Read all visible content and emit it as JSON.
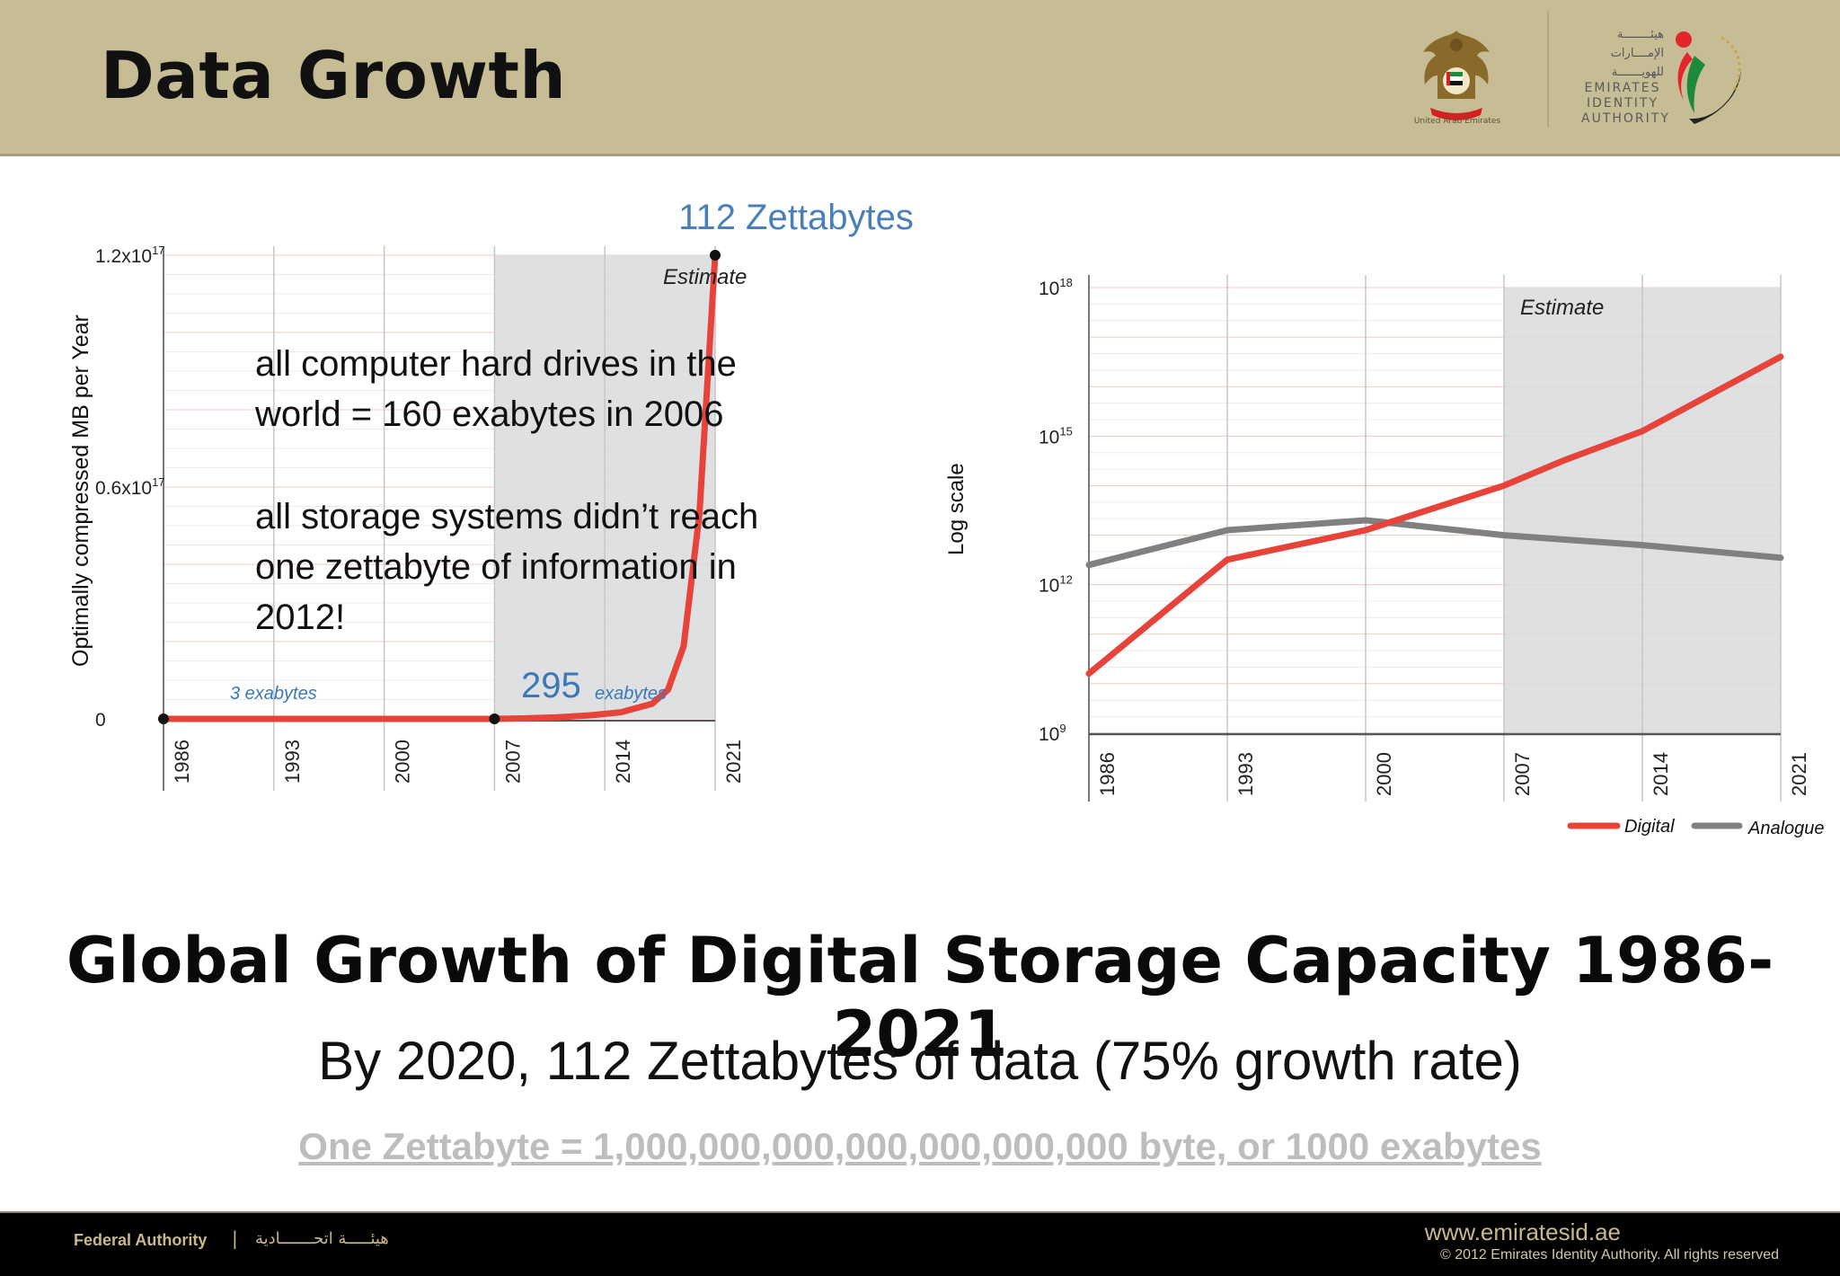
{
  "slide": {
    "title": "Data Growth",
    "heading": "Global Growth of Digital Storage Capacity 1986-2021",
    "subheading": "By 2020,  112 Zettabytes of data (75% growth rate)",
    "definition": "One Zettabyte = 1,000,000,000,000,000,000,000 byte, or 1000 exabytes"
  },
  "header": {
    "eagle_caption": "United Arab Emirates",
    "eida_arabic_lines": [
      "هيئــــــــة",
      "الإمــــارات",
      "للهويـــــــة"
    ],
    "eida_english_lines": [
      "EMIRATES",
      "IDENTITY",
      "AUTHORITY"
    ]
  },
  "footer": {
    "authority_en": "Federal Authority",
    "separator": "|",
    "authority_ar": "هيئـــــة اتحـــــــادية",
    "url": "www.emiratesid.ae",
    "copyright": "© 2012 Emirates Identity Authority. All rights reserved"
  },
  "chart_data": [
    {
      "type": "line",
      "title": "112 Zettabytes",
      "ylabel": "Optimally compressed MB per Year",
      "xlabel": "",
      "x_ticks": [
        "1986",
        "1993",
        "2000",
        "2007",
        "2014",
        "2021"
      ],
      "y_ticks": [
        "0",
        "0.6x10",
        "1.2x10"
      ],
      "y_tick_exponents": [
        "",
        "17",
        "17"
      ],
      "shaded_region": {
        "from": 2007,
        "to": 2021,
        "label": "Estimate"
      },
      "side_label": "Log scale",
      "annotations": {
        "a1986": "3 exabytes",
        "a2007_num": "295",
        "a2007_unit": "exabytes",
        "note1": [
          "all computer hard drives in the",
          "world = 160 exabytes in 2006"
        ],
        "note2": [
          "all storage systems didn’t reach",
          "one zettabyte of information in",
          "2012!"
        ]
      },
      "ylim": [
        0,
        1.2e+17
      ],
      "series": [
        {
          "x": [
            1986,
            2000,
            2007,
            2009,
            2011,
            2013,
            2015,
            2017,
            2018,
            2019,
            2020,
            2021
          ],
          "values": [
            0.0,
            0.0,
            0.0,
            150000000000000.0,
            400000000000000.0,
            900000000000000.0,
            1700000000000000.0,
            3900000000000000.0,
            7500000000000000.0,
            1.88e+16,
            5.3e+16,
            1.2e+17
          ],
          "color": "#e8433a"
        }
      ]
    },
    {
      "type": "line",
      "y_scale": "log",
      "x_ticks": [
        "1986",
        "1993",
        "2000",
        "2007",
        "2014",
        "2021"
      ],
      "y_ticks": [
        "10",
        "10",
        "10",
        "10"
      ],
      "y_tick_exponents": [
        "9",
        "12",
        "15",
        "18"
      ],
      "ylim": [
        1000000000.0,
        1e+18
      ],
      "shaded_region": {
        "from": 2007,
        "to": 2021,
        "label": "Estimate"
      },
      "legend_position": "bottom-right",
      "series": [
        {
          "name": "Digital",
          "color": "#e8433a",
          "x": [
            1986,
            1993,
            2000,
            2007,
            2010,
            2014,
            2021
          ],
          "values": [
            16000000000.0,
            3200000000000.0,
            12600000000000.0,
            100000000000000.0,
            320000000000000.0,
            1260000000000000.0,
            4e+16
          ]
        },
        {
          "name": "Analogue",
          "color": "#808080",
          "x": [
            1986,
            1993,
            2000,
            2007,
            2014,
            2021
          ],
          "values": [
            2500000000000.0,
            12600000000000.0,
            20000000000000.0,
            10000000000000.0,
            6300000000000.0,
            3500000000000.0
          ]
        }
      ]
    }
  ]
}
